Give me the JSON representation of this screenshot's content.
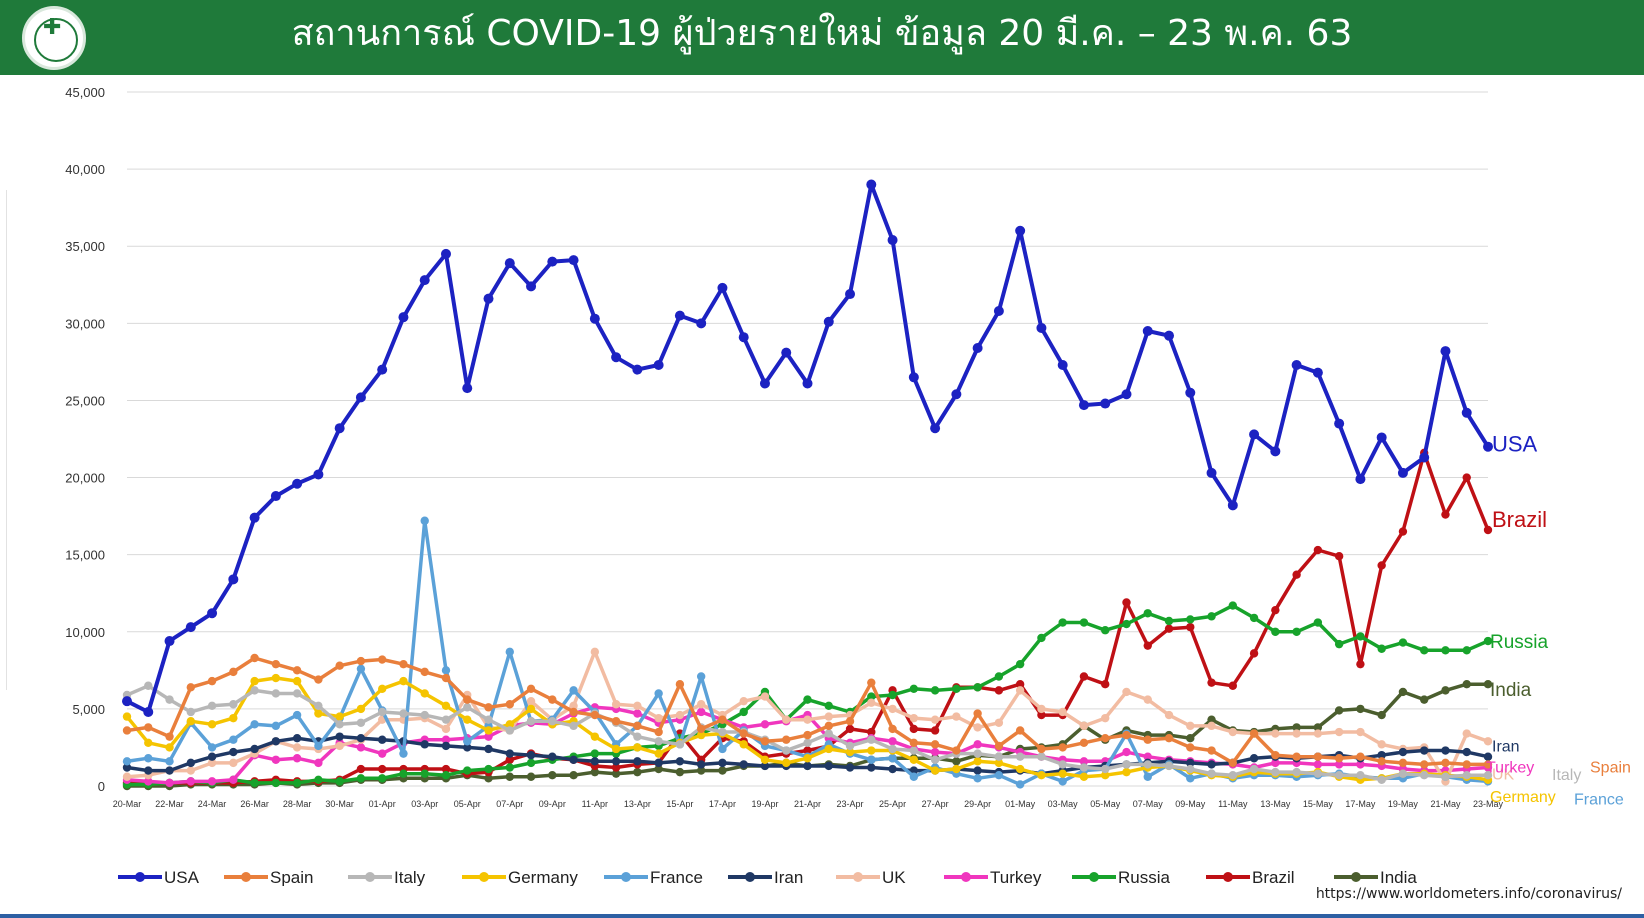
{
  "header": {
    "title": "สถานการณ์ COVID-19 ผู้ป่วยรายใหม่ ข้อมูล 20 มี.ค. – 23 พ.ค. 63",
    "logo_icon": "ministry-of-public-health-seal",
    "background_color": "#1f7a3a"
  },
  "source_text": "https://www.worldometers.info/coronavirus/",
  "chart_data": {
    "type": "line",
    "title": "",
    "xlabel": "",
    "ylabel": "",
    "ylim": [
      0,
      45000
    ],
    "yticks": [
      0,
      5000,
      10000,
      15000,
      20000,
      25000,
      30000,
      35000,
      40000,
      45000
    ],
    "ytick_labels": [
      "0",
      "5,000",
      "10,000",
      "15,000",
      "20,000",
      "25,000",
      "30,000",
      "35,000",
      "40,000",
      "45,000"
    ],
    "grid": true,
    "legend_placement": "bottom",
    "x": [
      "20-Mar",
      "21-Mar",
      "22-Mar",
      "23-Mar",
      "24-Mar",
      "25-Mar",
      "26-Mar",
      "27-Mar",
      "28-Mar",
      "29-Mar",
      "30-Mar",
      "31-Mar",
      "01-Apr",
      "02-Apr",
      "03-Apr",
      "04-Apr",
      "05-Apr",
      "06-Apr",
      "07-Apr",
      "08-Apr",
      "09-Apr",
      "10-Apr",
      "11-Apr",
      "12-Apr",
      "13-Apr",
      "14-Apr",
      "15-Apr",
      "16-Apr",
      "17-Apr",
      "18-Apr",
      "19-Apr",
      "20-Apr",
      "21-Apr",
      "22-Apr",
      "23-Apr",
      "24-Apr",
      "25-Apr",
      "26-Apr",
      "27-Apr",
      "28-Apr",
      "29-Apr",
      "30-Apr",
      "01-May",
      "02-May",
      "03-May",
      "04-May",
      "05-May",
      "06-May",
      "07-May",
      "08-May",
      "09-May",
      "10-May",
      "11-May",
      "12-May",
      "13-May",
      "14-May",
      "15-May",
      "16-May",
      "17-May",
      "18-May",
      "19-May",
      "20-May",
      "21-May",
      "22-May",
      "23-May"
    ],
    "x_tick_labels": [
      "20-Mar",
      "22-Mar",
      "24-Mar",
      "26-Mar",
      "28-Mar",
      "30-Mar",
      "01-Apr",
      "03-Apr",
      "05-Apr",
      "07-Apr",
      "09-Apr",
      "11-Apr",
      "13-Apr",
      "15-Apr",
      "17-Apr",
      "19-Apr",
      "21-Apr",
      "23-Apr",
      "25-Apr",
      "27-Apr",
      "29-Apr",
      "01-May",
      "03-May",
      "05-May",
      "07-May",
      "09-May",
      "11-May",
      "13-May",
      "15-May",
      "17-May",
      "19-May",
      "21-May",
      "23-May"
    ],
    "series": [
      {
        "name": "USA",
        "color": "#1c22c2",
        "label": "USA",
        "values": [
          5500,
          4800,
          9400,
          10300,
          11200,
          13400,
          17400,
          18800,
          19600,
          20200,
          23200,
          25200,
          27000,
          30400,
          32800,
          34500,
          25800,
          31600,
          33900,
          32400,
          34000,
          34100,
          30300,
          27800,
          27000,
          27300,
          30500,
          30000,
          32300,
          29100,
          26100,
          28100,
          26100,
          30100,
          31900,
          39000,
          35400,
          26500,
          23200,
          25400,
          28400,
          30800,
          36000,
          29700,
          27300,
          24700,
          24800,
          25400,
          29500,
          29200,
          25500,
          20300,
          18200,
          22800,
          21700,
          27300,
          26800,
          23500,
          19900,
          22600,
          20300,
          21300,
          28200,
          24200,
          22000
        ]
      },
      {
        "name": "Spain",
        "color": "#e97f3c",
        "label": "Spain",
        "values": [
          3600,
          3800,
          3200,
          6400,
          6800,
          7400,
          8300,
          7900,
          7500,
          6900,
          7800,
          8100,
          8200,
          7900,
          7400,
          7000,
          5600,
          5100,
          5300,
          6300,
          5600,
          4800,
          4600,
          4200,
          3900,
          3500,
          6600,
          3700,
          4300,
          3400,
          2900,
          3000,
          3300,
          3900,
          4200,
          6700,
          3700,
          2800,
          2700,
          2300,
          4700,
          2600,
          3600,
          2400,
          2500,
          2800,
          3100,
          3300,
          3000,
          3100,
          2500,
          2300,
          1500,
          3400,
          2000,
          1900,
          1900,
          1800,
          1900,
          1600,
          1500,
          1400,
          1500,
          1400,
          1400
        ]
      },
      {
        "name": "Italy",
        "color": "#b7b7b7",
        "label": "Italy",
        "values": [
          5900,
          6500,
          5600,
          4800,
          5200,
          5300,
          6200,
          6000,
          6000,
          5200,
          4000,
          4100,
          4800,
          4700,
          4600,
          4300,
          5100,
          4300,
          3600,
          4200,
          4200,
          3900,
          4700,
          4100,
          3200,
          2900,
          2700,
          3800,
          3500,
          3500,
          3000,
          2300,
          2800,
          3400,
          2600,
          3000,
          2400,
          2300,
          1700,
          2100,
          2100,
          1900,
          1900,
          1900,
          1400,
          1200,
          1100,
          1400,
          1400,
          1300,
          1100,
          800,
          700,
          1100,
          900,
          900,
          800,
          700,
          700,
          400,
          800,
          700,
          600,
          700,
          700
        ]
      },
      {
        "name": "Germany",
        "color": "#f5c400",
        "label": "Germany",
        "values": [
          4500,
          2800,
          2500,
          4200,
          4000,
          4400,
          6800,
          7000,
          6800,
          4700,
          4500,
          5000,
          6300,
          6800,
          6000,
          5200,
          4300,
          3600,
          4000,
          5000,
          4000,
          4200,
          3200,
          2400,
          2500,
          2100,
          2800,
          3300,
          3400,
          2700,
          1700,
          1500,
          1800,
          2400,
          2200,
          2300,
          2300,
          1700,
          1000,
          1100,
          1600,
          1500,
          1100,
          700,
          800,
          600,
          700,
          900,
          1200,
          1300,
          1000,
          700,
          600,
          900,
          800,
          800,
          900,
          600,
          400,
          500,
          800,
          800,
          700,
          600,
          400
        ]
      },
      {
        "name": "France",
        "color": "#5ba1d8",
        "label": "France",
        "values": [
          1600,
          1800,
          1600,
          4100,
          2500,
          3000,
          4000,
          3900,
          4600,
          2600,
          4400,
          7600,
          4900,
          2100,
          17200,
          7500,
          2900,
          3900,
          8700,
          4200,
          4300,
          6200,
          4800,
          2700,
          3900,
          6000,
          2700,
          7100,
          2400,
          3600,
          2600,
          2300,
          1900,
          2700,
          2100,
          1700,
          1800,
          600,
          1200,
          800,
          500,
          700,
          100,
          800,
          300,
          1000,
          1100,
          3400,
          600,
          1400,
          500,
          800,
          500,
          700,
          700,
          600,
          700,
          800,
          600,
          500,
          500,
          800,
          600,
          400,
          300
        ]
      },
      {
        "name": "Iran",
        "color": "#1f3864",
        "label": "Iran",
        "values": [
          1200,
          1000,
          1000,
          1500,
          1900,
          2200,
          2400,
          2900,
          3100,
          2900,
          3200,
          3100,
          3000,
          2900,
          2700,
          2600,
          2500,
          2400,
          2100,
          2000,
          1900,
          1700,
          1600,
          1600,
          1600,
          1500,
          1600,
          1400,
          1500,
          1400,
          1300,
          1300,
          1300,
          1300,
          1200,
          1200,
          1100,
          1000,
          1000,
          1100,
          1000,
          900,
          1000,
          800,
          1000,
          1200,
          1300,
          1400,
          1500,
          1600,
          1500,
          1400,
          1500,
          1800,
          1900,
          1800,
          1900,
          2000,
          1800,
          2000,
          2200,
          2300,
          2300,
          2200,
          1900
        ]
      },
      {
        "name": "UK",
        "color": "#f2bca2",
        "label": "UK",
        "values": [
          600,
          700,
          1000,
          1000,
          1500,
          1500,
          2100,
          2900,
          2500,
          2400,
          2600,
          3000,
          4300,
          4300,
          4400,
          3700,
          5900,
          3800,
          3600,
          5500,
          4300,
          5200,
          8700,
          5300,
          5200,
          4400,
          4600,
          5300,
          4600,
          5500,
          5800,
          4300,
          4300,
          4500,
          4600,
          5400,
          5000,
          4400,
          4300,
          4500,
          3800,
          4100,
          6200,
          5000,
          4800,
          3900,
          4400,
          6100,
          5600,
          4600,
          3900,
          3900,
          3500,
          3400,
          3400,
          3400,
          3400,
          3500,
          3500,
          2700,
          2400,
          2500,
          300,
          3400,
          2900
        ]
      },
      {
        "name": "Turkey",
        "color": "#f036be",
        "label": "Turkey",
        "values": [
          400,
          300,
          200,
          300,
          300,
          400,
          2000,
          1700,
          1800,
          1500,
          2800,
          2500,
          2100,
          2800,
          3000,
          3000,
          3100,
          3200,
          3900,
          4100,
          4000,
          4700,
          5100,
          5000,
          4700,
          4100,
          4300,
          4800,
          4300,
          3800,
          4000,
          4200,
          4600,
          3100,
          2800,
          3100,
          2900,
          2400,
          2200,
          2100,
          2700,
          2500,
          2200,
          1900,
          1700,
          1600,
          1600,
          2200,
          1900,
          1700,
          1600,
          1500,
          1400,
          1200,
          1500,
          1500,
          1400,
          1400,
          1400,
          1300,
          1100,
          1000,
          1000,
          1100,
          1200
        ]
      },
      {
        "name": "Russia",
        "color": "#17a32b",
        "label": "Russia",
        "values": [
          100,
          100,
          200,
          300,
          200,
          400,
          200,
          200,
          200,
          400,
          300,
          500,
          500,
          800,
          800,
          700,
          1000,
          1100,
          1200,
          1500,
          1700,
          1900,
          2100,
          2100,
          2500,
          2600,
          3100,
          3400,
          4000,
          4800,
          6100,
          4300,
          5600,
          5200,
          4800,
          5800,
          5900,
          6300,
          6200,
          6300,
          6400,
          7100,
          7900,
          9600,
          10600,
          10600,
          10100,
          10500,
          11200,
          10700,
          10800,
          11000,
          11700,
          10900,
          10000,
          10000,
          10600,
          9200,
          9700,
          8900,
          9300,
          8800,
          8800,
          8800,
          9400
        ]
      },
      {
        "name": "Brazil",
        "color": "#bf1015",
        "label": "Brazil",
        "values": [
          200,
          100,
          200,
          200,
          200,
          200,
          300,
          400,
          300,
          300,
          400,
          1100,
          1100,
          1100,
          1100,
          1100,
          800,
          900,
          1700,
          2100,
          1800,
          1700,
          1300,
          1200,
          1400,
          1500,
          3400,
          1700,
          3100,
          2900,
          1900,
          2100,
          2300,
          2600,
          3700,
          3500,
          6200,
          3700,
          3600,
          6400,
          6400,
          6200,
          6600,
          4600,
          4600,
          7100,
          6600,
          11900,
          9100,
          10200,
          10300,
          6700,
          6500,
          8600,
          11400,
          13700,
          15300,
          14900,
          7900,
          14300,
          16500,
          21600,
          17600,
          20000,
          16600
        ]
      },
      {
        "name": "India",
        "color": "#4b5e2e",
        "label": "India",
        "values": [
          0,
          0,
          0,
          100,
          100,
          100,
          100,
          200,
          100,
          200,
          200,
          400,
          400,
          500,
          500,
          500,
          700,
          500,
          600,
          600,
          700,
          700,
          900,
          800,
          900,
          1100,
          900,
          1000,
          1000,
          1300,
          1300,
          1500,
          1300,
          1400,
          1300,
          1700,
          1800,
          1800,
          1800,
          1600,
          2000,
          1900,
          2400,
          2500,
          2700,
          3900,
          3000,
          3600,
          3300,
          3300,
          3100,
          4300,
          3600,
          3500,
          3700,
          3800,
          3800,
          4900,
          5000,
          4600,
          6100,
          5600,
          6200,
          6600,
          6600
        ]
      }
    ]
  }
}
